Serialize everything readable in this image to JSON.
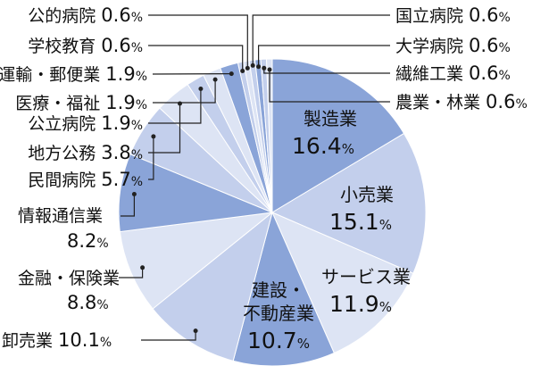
{
  "chart_data": {
    "type": "pie",
    "title": "",
    "unit": "%",
    "start": "12 o'clock",
    "direction": "clockwise",
    "slices": [
      {
        "label": "製造業",
        "value": 16.4,
        "value_text": "16.4",
        "color": "#8aa4d8",
        "label_position": "inside"
      },
      {
        "label": "小売業",
        "value": 15.1,
        "value_text": "15.1",
        "color": "#c3cfec",
        "label_position": "inside"
      },
      {
        "label": "サービス業",
        "value": 11.9,
        "value_text": "11.9",
        "color": "#dde4f4",
        "label_position": "inside"
      },
      {
        "label": "建設・不動産業",
        "value": 10.7,
        "value_text": "10.7",
        "color": "#8aa4d8",
        "label_position": "inside",
        "label_lines": [
          "建設・",
          "不動産業"
        ]
      },
      {
        "label": "卸売業",
        "value": 10.1,
        "value_text": "10.1",
        "color": "#c3cfec",
        "label_position": "outside"
      },
      {
        "label": "金融・保険業",
        "value": 8.8,
        "value_text": "8.8",
        "color": "#dde4f4",
        "label_position": "outside"
      },
      {
        "label": "情報通信業",
        "value": 8.2,
        "value_text": "8.2",
        "color": "#8aa4d8",
        "label_position": "outside"
      },
      {
        "label": "民間病院",
        "value": 5.7,
        "value_text": "5.7",
        "color": "#c3cfec",
        "label_position": "outside"
      },
      {
        "label": "地方公務",
        "value": 3.8,
        "value_text": "3.8",
        "color": "#dde4f4",
        "label_position": "outside"
      },
      {
        "label": "公立病院",
        "value": 1.9,
        "value_text": "1.9",
        "color": "#c3cfec",
        "label_position": "outside"
      },
      {
        "label": "医療・福祉",
        "value": 1.9,
        "value_text": "1.9",
        "color": "#dde4f4",
        "label_position": "outside"
      },
      {
        "label": "運輸・郵便業",
        "value": 1.9,
        "value_text": "1.9",
        "color": "#8aa4d8",
        "label_position": "outside"
      },
      {
        "label": "学校教育",
        "value": 0.6,
        "value_text": "0.6",
        "color": "#c3cfec",
        "label_position": "outside"
      },
      {
        "label": "公的病院",
        "value": 0.6,
        "value_text": "0.6",
        "color": "#dde4f4",
        "label_position": "outside"
      },
      {
        "label": "国立病院",
        "value": 0.6,
        "value_text": "0.6",
        "color": "#c3cfec",
        "label_position": "outside"
      },
      {
        "label": "大学病院",
        "value": 0.6,
        "value_text": "0.6",
        "color": "#8aa4d8",
        "label_position": "outside"
      },
      {
        "label": "繊維工業",
        "value": 0.6,
        "value_text": "0.6",
        "color": "#c3cfec",
        "label_position": "outside"
      },
      {
        "label": "農業・林業",
        "value": 0.6,
        "value_text": "0.6",
        "color": "#dde4f4",
        "label_position": "outside"
      }
    ]
  }
}
